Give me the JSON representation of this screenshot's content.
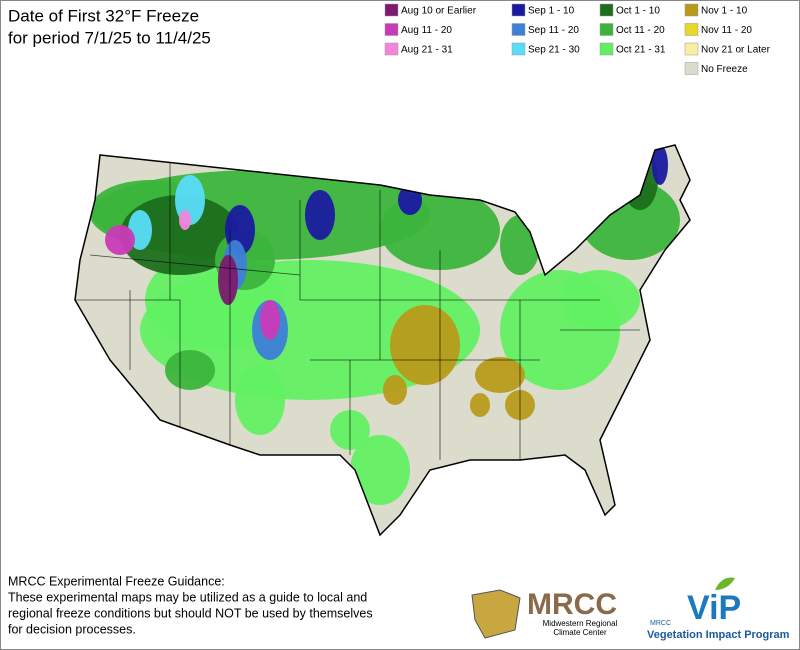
{
  "header": {
    "title_lines": [
      "Date of First 32°F Freeze",
      "for period 7/1/25 to 11/4/25"
    ]
  },
  "legend": [
    {
      "label": "Aug 10 or Earlier",
      "color": "#7b1a6e"
    },
    {
      "label": "Aug 11 - 20",
      "color": "#c93ab8"
    },
    {
      "label": "Aug 21 - 31",
      "color": "#f385dc"
    },
    {
      "label": "Sep 1 - 10",
      "color": "#1a1aa0"
    },
    {
      "label": "Sep 11 - 20",
      "color": "#3d80d8"
    },
    {
      "label": "Sep 21 - 30",
      "color": "#58dcf8"
    },
    {
      "label": "Oct 1 - 10",
      "color": "#1c6e1c"
    },
    {
      "label": "Oct 11 - 20",
      "color": "#3cb43c"
    },
    {
      "label": "Oct 21 - 31",
      "color": "#62f062"
    },
    {
      "label": "Nov 1 - 10",
      "color": "#b89a1a"
    },
    {
      "label": "Nov 11 - 20",
      "color": "#e8d82a"
    },
    {
      "label": "Nov 21 or Later",
      "color": "#f8eda0"
    },
    {
      "label": "No Freeze",
      "color": "#dcdccc"
    }
  ],
  "footer": {
    "heading": "MRCC Experimental Freeze Guidance:",
    "lines": [
      "These experimental maps may be utilized as a guide to local and",
      "regional freeze conditions but should NOT be used by themselves",
      "for decision processes."
    ]
  },
  "logos": {
    "mrcc": "MRCC",
    "mrcc_sub": [
      "Midwestern Regional",
      "Climate Center"
    ],
    "vip_small": "MRCC",
    "vip": "ViP",
    "vip_sub": "Vegetation Impact Program"
  }
}
